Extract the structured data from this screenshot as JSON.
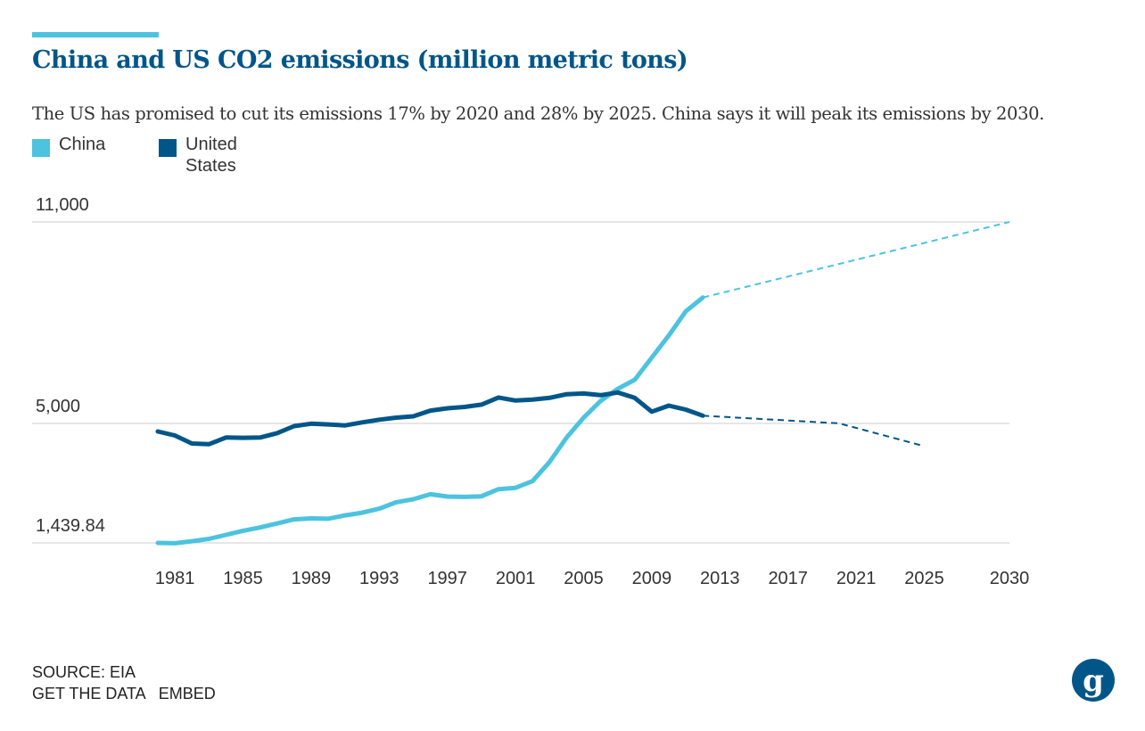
{
  "header": {
    "title": "China and US CO2 emissions (million metric tons)",
    "subtitle": "The US has promised to cut its emissions 17% by 2020 and 28% by 2025. China says it will peak its emissions by 2030."
  },
  "legend": {
    "china": "China",
    "us": "United States"
  },
  "footer": {
    "source": "SOURCE: EIA",
    "get_data": "GET THE DATA",
    "embed": "EMBED"
  },
  "colors": {
    "china": "#4cc3df",
    "us": "#005689",
    "title": "#005689",
    "grid": "#cccccc"
  },
  "chart_data": {
    "type": "line",
    "title": "China and US CO2 emissions (million metric tons)",
    "xlabel": "",
    "ylabel": "",
    "xlim": [
      1980,
      2030
    ],
    "ylim": [
      1439.84,
      11000
    ],
    "y_ticks": [
      {
        "value": 11000,
        "label": "11,000"
      },
      {
        "value": 5000,
        "label": "5,000"
      },
      {
        "value": 1439.84,
        "label": "1,439.84"
      }
    ],
    "x_ticks": [
      {
        "value": 1981,
        "label": "1981"
      },
      {
        "value": 1985,
        "label": "1985"
      },
      {
        "value": 1989,
        "label": "1989"
      },
      {
        "value": 1993,
        "label": "1993"
      },
      {
        "value": 1997,
        "label": "1997"
      },
      {
        "value": 2001,
        "label": "2001"
      },
      {
        "value": 2005,
        "label": "2005"
      },
      {
        "value": 2009,
        "label": "2009"
      },
      {
        "value": 2013,
        "label": "2013"
      },
      {
        "value": 2017,
        "label": "2017"
      },
      {
        "value": 2021,
        "label": "2021"
      },
      {
        "value": 2025,
        "label": "2025"
      },
      {
        "value": 2030,
        "label": "2030"
      }
    ],
    "series": [
      {
        "name": "China",
        "key": "china",
        "x": [
          1980,
          1981,
          1982,
          1983,
          1984,
          1985,
          1986,
          1987,
          1988,
          1989,
          1990,
          1991,
          1992,
          1993,
          1994,
          1995,
          1996,
          1997,
          1998,
          1999,
          2000,
          2001,
          2002,
          2003,
          2004,
          2005,
          2006,
          2007,
          2008,
          2009,
          2010,
          2011,
          2012
        ],
        "values": [
          1440,
          1430,
          1490,
          1560,
          1680,
          1800,
          1900,
          2020,
          2140,
          2170,
          2160,
          2260,
          2340,
          2460,
          2650,
          2740,
          2890,
          2820,
          2810,
          2830,
          3040,
          3080,
          3280,
          3850,
          4580,
          5170,
          5670,
          6030,
          6300,
          6960,
          7620,
          8340,
          8750
        ],
        "projection": {
          "x": [
            2012,
            2030
          ],
          "values": [
            8750,
            11000
          ]
        }
      },
      {
        "name": "United States",
        "key": "us",
        "x": [
          1980,
          1981,
          1982,
          1983,
          1984,
          1985,
          1986,
          1987,
          1988,
          1989,
          1990,
          1991,
          1992,
          1993,
          1994,
          1995,
          1996,
          1997,
          1998,
          1999,
          2000,
          2001,
          2002,
          2003,
          2004,
          2005,
          2006,
          2007,
          2008,
          2009,
          2010,
          2011,
          2012
        ],
        "values": [
          4760,
          4640,
          4400,
          4380,
          4580,
          4570,
          4580,
          4710,
          4920,
          4990,
          4970,
          4940,
          5030,
          5110,
          5170,
          5210,
          5380,
          5450,
          5490,
          5560,
          5770,
          5680,
          5710,
          5760,
          5870,
          5890,
          5840,
          5920,
          5760,
          5350,
          5530,
          5410,
          5230
        ],
        "projection": {
          "x": [
            2012,
            2020,
            2025
          ],
          "values": [
            5230,
            5000,
            4320
          ]
        }
      }
    ]
  }
}
